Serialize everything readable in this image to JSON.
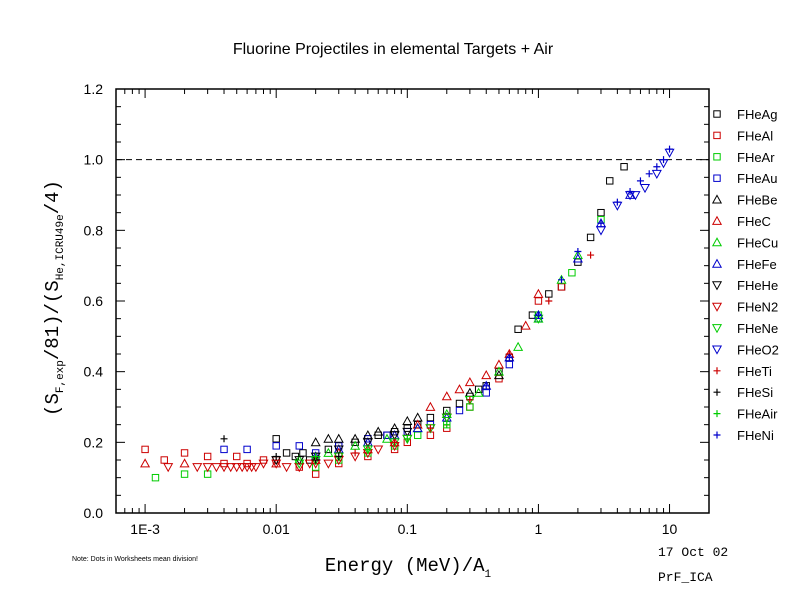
{
  "chart_data": {
    "type": "scatter",
    "title": "Fluorine Projectiles in elemental Targets + Air",
    "xlabel": "Energy (MeV)/A",
    "xlabel_sub": "1",
    "ylabel": {
      "p1": "(S",
      "p1_sub": "F,exp",
      "p2": "/81)/(S",
      "p2_sub": "He,ICRU49e",
      "p3": "/4)"
    },
    "x_scale": "log",
    "xlim": [
      0.0006,
      20
    ],
    "ylim": [
      0,
      1.2
    ],
    "x_ticks": [
      {
        "value": 0.001,
        "label": "1E-3"
      },
      {
        "value": 0.01,
        "label": "0.01"
      },
      {
        "value": 0.1,
        "label": "0.1"
      },
      {
        "value": 1,
        "label": "1"
      },
      {
        "value": 10,
        "label": "10"
      }
    ],
    "y_ticks": [
      {
        "value": 0,
        "label": "0.0"
      },
      {
        "value": 0.2,
        "label": "0.2"
      },
      {
        "value": 0.4,
        "label": "0.4"
      },
      {
        "value": 0.6,
        "label": "0.6"
      },
      {
        "value": 0.8,
        "label": "0.8"
      },
      {
        "value": 1.0,
        "label": "1.0"
      },
      {
        "value": 1.2,
        "label": "1.2"
      }
    ],
    "reference_line": {
      "y": 1.0,
      "style": "dashed"
    },
    "legend_position": "right-outside",
    "series": [
      {
        "name": "FHeAg",
        "marker": "square",
        "color": "#000000",
        "x": [
          0.01,
          0.012,
          0.014,
          0.016,
          0.018,
          0.02,
          0.025,
          0.03,
          0.04,
          0.05,
          0.06,
          0.07,
          0.08,
          0.1,
          0.12,
          0.15,
          0.2,
          0.25,
          0.3,
          0.35,
          0.4,
          0.5,
          0.6,
          0.7,
          0.9,
          1.2,
          1.5,
          2.0,
          2.5,
          3.0,
          3.5,
          4.5
        ],
        "y": [
          0.21,
          0.17,
          0.16,
          0.17,
          0.15,
          0.16,
          0.18,
          0.19,
          0.2,
          0.21,
          0.22,
          0.22,
          0.23,
          0.24,
          0.25,
          0.27,
          0.29,
          0.31,
          0.33,
          0.35,
          0.36,
          0.4,
          0.44,
          0.52,
          0.56,
          0.62,
          0.64,
          0.71,
          0.78,
          0.85,
          0.94,
          0.98
        ]
      },
      {
        "name": "FHeAl",
        "marker": "square",
        "color": "#cc0000",
        "x": [
          0.001,
          0.0014,
          0.002,
          0.003,
          0.004,
          0.005,
          0.006,
          0.008,
          0.01,
          0.015,
          0.02,
          0.03,
          0.05,
          0.08,
          0.1,
          0.15,
          0.2,
          0.3,
          0.5,
          1.0,
          1.5
        ],
        "y": [
          0.18,
          0.15,
          0.17,
          0.16,
          0.14,
          0.16,
          0.14,
          0.15,
          0.15,
          0.13,
          0.11,
          0.14,
          0.16,
          0.18,
          0.2,
          0.22,
          0.24,
          0.3,
          0.38,
          0.6,
          0.64
        ]
      },
      {
        "name": "FHeAr",
        "marker": "square",
        "color": "#00cc00",
        "x": [
          0.0012,
          0.002,
          0.003,
          0.02,
          0.03,
          0.05,
          0.08,
          0.12,
          0.2,
          0.3,
          1.0,
          1.8,
          3.0
        ],
        "y": [
          0.1,
          0.11,
          0.11,
          0.13,
          0.15,
          0.17,
          0.19,
          0.22,
          0.25,
          0.3,
          0.56,
          0.68,
          0.83
        ]
      },
      {
        "name": "FHeAu",
        "marker": "square",
        "color": "#0000cc",
        "x": [
          0.004,
          0.006,
          0.01,
          0.015,
          0.02,
          0.03,
          0.05,
          0.07,
          0.1,
          0.15,
          0.25,
          0.4,
          0.6,
          1.0
        ],
        "y": [
          0.18,
          0.18,
          0.19,
          0.19,
          0.17,
          0.19,
          0.21,
          0.22,
          0.23,
          0.25,
          0.29,
          0.34,
          0.42,
          0.55
        ]
      },
      {
        "name": "FHeBe",
        "marker": "triangle-up",
        "color": "#000000",
        "x": [
          0.02,
          0.025,
          0.03,
          0.04,
          0.05,
          0.06,
          0.08,
          0.1,
          0.12,
          0.3,
          0.5
        ],
        "y": [
          0.2,
          0.21,
          0.21,
          0.21,
          0.22,
          0.23,
          0.24,
          0.26,
          0.27,
          0.34,
          0.39
        ]
      },
      {
        "name": "FHeC",
        "marker": "triangle-up",
        "color": "#cc0000",
        "x": [
          0.001,
          0.002,
          0.01,
          0.02,
          0.03,
          0.05,
          0.08,
          0.12,
          0.15,
          0.2,
          0.25,
          0.3,
          0.4,
          0.5,
          0.6,
          0.8,
          1.0
        ],
        "y": [
          0.14,
          0.14,
          0.14,
          0.15,
          0.17,
          0.18,
          0.2,
          0.25,
          0.3,
          0.33,
          0.35,
          0.37,
          0.39,
          0.42,
          0.45,
          0.53,
          0.62
        ]
      },
      {
        "name": "FHeCu",
        "marker": "triangle-up",
        "color": "#00cc00",
        "x": [
          0.015,
          0.025,
          0.04,
          0.07,
          0.12,
          0.2,
          0.35,
          0.5,
          0.7,
          1.0,
          1.5,
          2.0
        ],
        "y": [
          0.15,
          0.17,
          0.19,
          0.21,
          0.24,
          0.28,
          0.34,
          0.4,
          0.47,
          0.55,
          0.66,
          0.73
        ]
      },
      {
        "name": "FHeFe",
        "marker": "triangle-up",
        "color": "#0000cc",
        "x": [
          0.02,
          0.03,
          0.05,
          0.08,
          0.12,
          0.2,
          0.4,
          0.6,
          1.0,
          2.0,
          3.0,
          5.0
        ],
        "y": [
          0.16,
          0.18,
          0.2,
          0.22,
          0.24,
          0.27,
          0.36,
          0.44,
          0.56,
          0.72,
          0.82,
          0.9
        ]
      },
      {
        "name": "FHeHe",
        "marker": "triangle-down",
        "color": "#000000",
        "x": [
          0.01,
          0.015,
          0.02,
          0.03,
          0.05,
          0.08,
          0.1,
          0.2
        ],
        "y": [
          0.15,
          0.15,
          0.16,
          0.18,
          0.2,
          0.22,
          0.23,
          0.27
        ]
      },
      {
        "name": "FHeN2",
        "marker": "triangle-down",
        "color": "#cc0000",
        "x": [
          0.0015,
          0.0025,
          0.003,
          0.0035,
          0.004,
          0.0045,
          0.005,
          0.0055,
          0.006,
          0.0065,
          0.007,
          0.008,
          0.01,
          0.012,
          0.015,
          0.018,
          0.02,
          0.025,
          0.03,
          0.04,
          0.05,
          0.06,
          0.08,
          0.1,
          0.15,
          0.2
        ],
        "y": [
          0.13,
          0.13,
          0.13,
          0.13,
          0.13,
          0.13,
          0.13,
          0.13,
          0.13,
          0.13,
          0.13,
          0.14,
          0.14,
          0.13,
          0.13,
          0.14,
          0.14,
          0.14,
          0.15,
          0.16,
          0.17,
          0.18,
          0.19,
          0.21,
          0.24,
          0.27
        ]
      },
      {
        "name": "FHeNe",
        "marker": "triangle-down",
        "color": "#00cc00",
        "x": [
          0.015,
          0.02,
          0.03,
          0.05,
          0.08,
          0.1,
          0.15,
          0.2,
          0.3,
          1.0
        ],
        "y": [
          0.14,
          0.15,
          0.16,
          0.18,
          0.2,
          0.21,
          0.24,
          0.27,
          0.32,
          0.55
        ]
      },
      {
        "name": "FHeO2",
        "marker": "triangle-down",
        "color": "#0000cc",
        "x": [
          3.0,
          4.0,
          5.0,
          5.5,
          6.5,
          8.0,
          9.0,
          10.0
        ],
        "y": [
          0.8,
          0.87,
          0.9,
          0.9,
          0.92,
          0.96,
          0.99,
          1.02
        ]
      },
      {
        "name": "FHeTi",
        "marker": "plus",
        "color": "#cc0000",
        "x": [
          0.02,
          0.04,
          0.08,
          0.15,
          0.3,
          0.6,
          1.2,
          2.5
        ],
        "y": [
          0.15,
          0.17,
          0.2,
          0.24,
          0.32,
          0.45,
          0.6,
          0.73
        ]
      },
      {
        "name": "FHeSi",
        "marker": "plus",
        "color": "#000000",
        "x": [
          0.004,
          0.01,
          0.02,
          0.03
        ],
        "y": [
          0.21,
          0.16,
          0.15,
          0.16
        ]
      },
      {
        "name": "FHeAir",
        "marker": "plus",
        "color": "#00cc00",
        "x": [
          0.02,
          0.05,
          0.1,
          0.2
        ],
        "y": [
          0.16,
          0.18,
          0.21,
          0.25
        ]
      },
      {
        "name": "FHeNi",
        "marker": "plus",
        "color": "#0000cc",
        "x": [
          0.4,
          0.6,
          1.0,
          1.5,
          2.0,
          3.0,
          4.0,
          5.0,
          6.0,
          7.0,
          8.0,
          9.0,
          10.0
        ],
        "y": [
          0.36,
          0.44,
          0.56,
          0.66,
          0.74,
          0.82,
          0.88,
          0.91,
          0.94,
          0.96,
          0.98,
          1.0,
          1.03
        ]
      }
    ]
  },
  "annotations": {
    "note": "Note: Dots in Worksheets mean division!",
    "date": "17 Oct 02",
    "code": "PrF_ICA"
  }
}
